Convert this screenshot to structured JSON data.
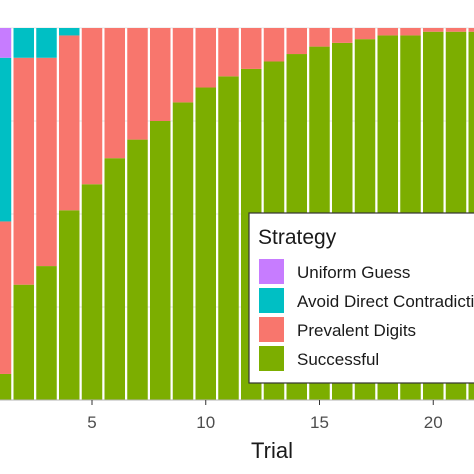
{
  "chart_data": {
    "type": "bar",
    "stacked": true,
    "normalized": true,
    "xlabel": "Trial",
    "ylabel": "",
    "ylim": [
      0,
      1
    ],
    "x": [
      1,
      2,
      3,
      4,
      5,
      6,
      7,
      8,
      9,
      10,
      11,
      12,
      13,
      14,
      15,
      16,
      17,
      18,
      19,
      20,
      21,
      22
    ],
    "xticks": [
      5,
      10,
      15,
      20
    ],
    "grid": true,
    "legend": {
      "title": "Strategy",
      "placement": "bottom-right inside",
      "entries": [
        "Uniform Guess",
        "Avoid Direct Contradiction",
        "Prevalent Digits",
        "Successful"
      ]
    },
    "series": [
      {
        "name": "Uniform Guess",
        "color": "#C77CFF",
        "values": [
          0.08,
          0.0,
          0.0,
          0.0,
          0.0,
          0.0,
          0.0,
          0.0,
          0.0,
          0.0,
          0.0,
          0.0,
          0.0,
          0.0,
          0.0,
          0.0,
          0.0,
          0.0,
          0.0,
          0.0,
          0.0,
          0.0
        ]
      },
      {
        "name": "Avoid Direct Contradiction",
        "color": "#00BFC4",
        "values": [
          0.44,
          0.08,
          0.08,
          0.02,
          0.0,
          0.0,
          0.0,
          0.0,
          0.0,
          0.0,
          0.0,
          0.0,
          0.0,
          0.0,
          0.0,
          0.0,
          0.0,
          0.0,
          0.0,
          0.0,
          0.0,
          0.0
        ]
      },
      {
        "name": "Prevalent Digits",
        "color": "#F8766D",
        "values": [
          0.41,
          0.61,
          0.56,
          0.47,
          0.42,
          0.35,
          0.3,
          0.25,
          0.2,
          0.16,
          0.13,
          0.11,
          0.09,
          0.07,
          0.05,
          0.04,
          0.03,
          0.02,
          0.02,
          0.01,
          0.01,
          0.01
        ]
      },
      {
        "name": "Successful",
        "color": "#7CAE00",
        "values": [
          0.07,
          0.31,
          0.36,
          0.51,
          0.58,
          0.65,
          0.7,
          0.75,
          0.8,
          0.84,
          0.87,
          0.89,
          0.91,
          0.93,
          0.95,
          0.96,
          0.97,
          0.98,
          0.98,
          0.99,
          0.99,
          0.99
        ]
      }
    ]
  }
}
